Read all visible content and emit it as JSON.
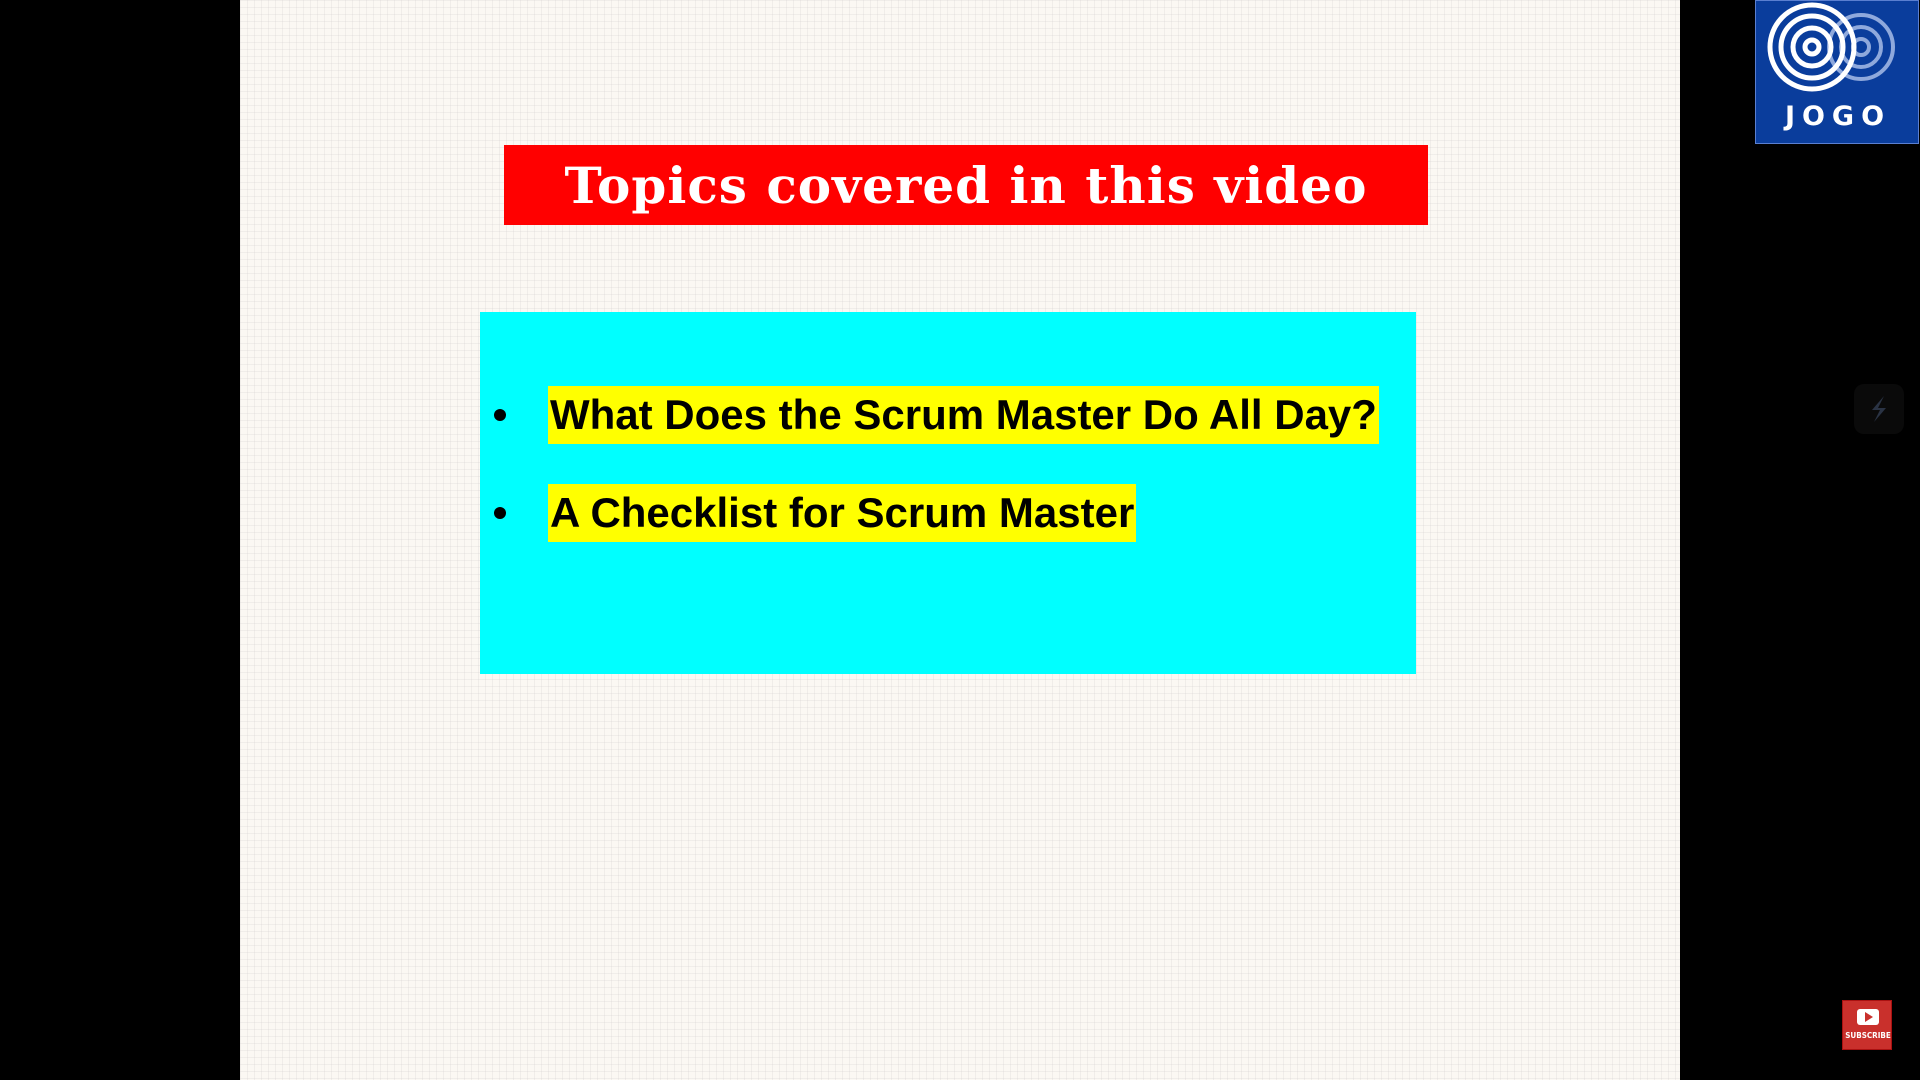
{
  "slide": {
    "title": "Topics covered in this video",
    "topics": [
      "What Does the Scrum Master Do All Day?",
      "A Checklist for Scrum Master"
    ]
  },
  "logo": {
    "text": "JOGO"
  },
  "subscribe_button": {
    "label": "SUBSCRIBE",
    "icon": "youtube-play-icon"
  },
  "side_widget": {
    "icon": "slash-logo-icon"
  },
  "colors": {
    "title_background": "#ff0000",
    "title_text": "#ffffff",
    "topics_background": "#00ffff",
    "topic_highlight": "#ffff00",
    "logo_background": "#0a3d9c",
    "subscribe_background": "#c9302c"
  }
}
